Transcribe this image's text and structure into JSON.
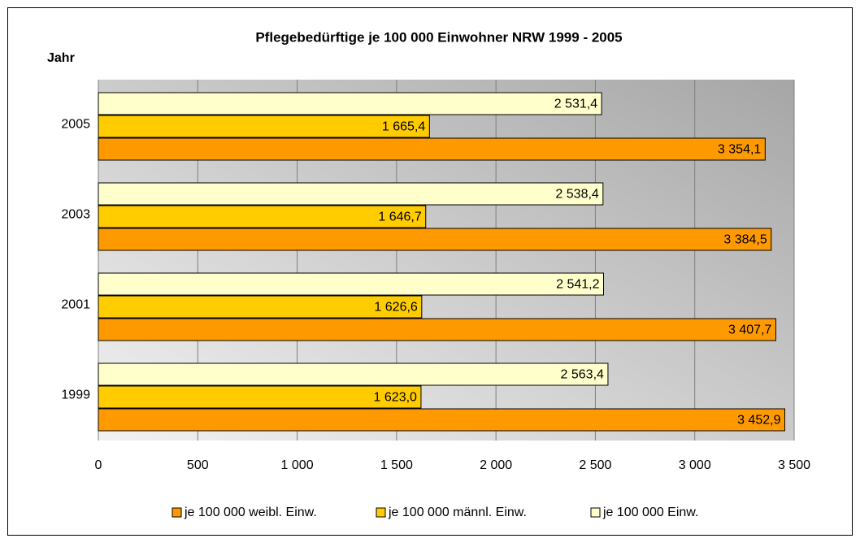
{
  "chart_data": {
    "type": "hbar",
    "title": "Pflegebedürftige je 100 000 Einwohner NRW 1999 - 2005",
    "y_label": "Jahr",
    "categories": [
      "2005",
      "2003",
      "2001",
      "1999"
    ],
    "series": [
      {
        "name": "je 100 000 weibl. Einw.",
        "color": "#ff9900",
        "values": [
          3354.1,
          3384.5,
          3407.7,
          3452.9
        ],
        "value_labels": [
          "3 354,1",
          "3 384,5",
          "3 407,7",
          "3 452,9"
        ]
      },
      {
        "name": "je 100 000 männl. Einw.",
        "color": "#ffcc00",
        "values": [
          1665.4,
          1646.7,
          1626.6,
          1623.0
        ],
        "value_labels": [
          "1 665,4",
          "1 646,7",
          "1 626,6",
          "1 623,0"
        ]
      },
      {
        "name": "je 100 000 Einw.",
        "color": "#ffffcc",
        "values": [
          2531.4,
          2538.4,
          2541.2,
          2563.4
        ],
        "value_labels": [
          "2 531,4",
          "2 538,4",
          "2 541,2",
          "2 563,4"
        ]
      }
    ],
    "xlim": [
      0,
      3500
    ],
    "xticks": [
      0,
      500,
      {
        "value": 1000,
        "label": "1 000"
      },
      {
        "value": 1500,
        "label": "1 500"
      },
      {
        "value": 2000,
        "label": "2 000"
      },
      {
        "value": 2500,
        "label": "2 500"
      },
      {
        "value": 3000,
        "label": "3 000"
      },
      {
        "value": 3500,
        "label": "3 500"
      }
    ],
    "grid": true
  }
}
